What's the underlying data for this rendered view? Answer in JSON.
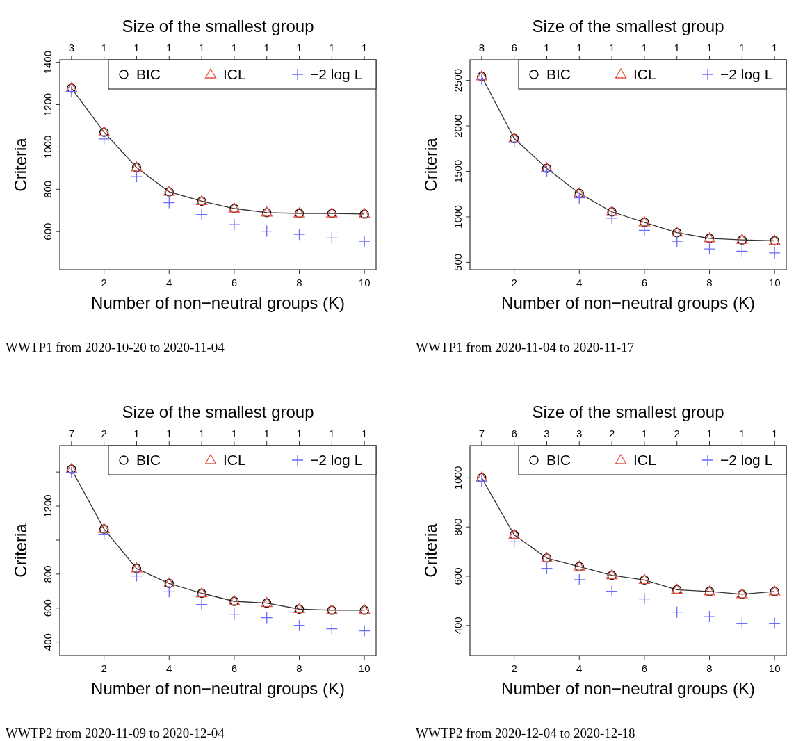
{
  "chart_data": [
    {
      "type": "line",
      "x2label": "Size of the smallest group",
      "xlabel": "Number of non−neutral groups (K)",
      "ylabel": "Criteria",
      "x": [
        1,
        2,
        3,
        4,
        5,
        6,
        7,
        8,
        9,
        10
      ],
      "xlim": [
        0.64,
        10.36
      ],
      "xticks": [
        2,
        4,
        6,
        8,
        10
      ],
      "ylim": [
        420,
        1412
      ],
      "yticks": [
        600,
        800,
        1000,
        1200,
        1400
      ],
      "legend": "top right",
      "annotations": [
        "WWTP1 from 2020-10-20 to 2020-11-04",
        {
          "text": "3",
          "x": 1
        },
        {
          "text": "1",
          "x": 2
        },
        {
          "text": "1",
          "x": 3
        },
        {
          "text": "1",
          "x": 4
        },
        {
          "text": "1",
          "x": 5
        },
        {
          "text": "1",
          "x": 6
        },
        {
          "text": "1",
          "x": 7
        },
        {
          "text": "1",
          "x": 8
        },
        {
          "text": "1",
          "x": 9
        },
        {
          "text": "1",
          "x": 10
        }
      ],
      "series": [
        {
          "name": "BIC",
          "type": "line",
          "marker": "circle",
          "color": "#000000",
          "values": [
            1278,
            1070,
            903,
            788,
            744,
            709,
            690,
            686,
            686,
            683
          ]
        },
        {
          "name": "ICL",
          "type": "scatter",
          "marker": "triangle",
          "color": "#df5347",
          "values": [
            1278,
            1070,
            903,
            788,
            744,
            709,
            690,
            686,
            686,
            683
          ]
        },
        {
          "name": "−2 log L",
          "type": "scatter",
          "marker": "cross",
          "color": "#6b6bff",
          "values": [
            1262,
            1038,
            860,
            737,
            681,
            633,
            602,
            587,
            570,
            554
          ]
        }
      ]
    },
    {
      "type": "line",
      "x2label": "Size of the smallest group",
      "xlabel": "Number of non−neutral groups (K)",
      "ylabel": "Criteria",
      "x": [
        1,
        2,
        3,
        4,
        5,
        6,
        7,
        8,
        9,
        10
      ],
      "xlim": [
        0.64,
        10.36
      ],
      "xticks": [
        2,
        4,
        6,
        8,
        10
      ],
      "ylim": [
        419,
        2726
      ],
      "yticks": [
        500,
        1000,
        1500,
        2000,
        2500
      ],
      "legend": "top right",
      "annotations": [
        "WWTP1 from 2020-11-04 to 2020-11-17",
        {
          "text": "8",
          "x": 1
        },
        {
          "text": "6",
          "x": 2
        },
        {
          "text": "1",
          "x": 3
        },
        {
          "text": "1",
          "x": 4
        },
        {
          "text": "1",
          "x": 5
        },
        {
          "text": "1",
          "x": 6
        },
        {
          "text": "1",
          "x": 7
        },
        {
          "text": "1",
          "x": 8
        },
        {
          "text": "1",
          "x": 9
        },
        {
          "text": "1",
          "x": 10
        }
      ],
      "series": [
        {
          "name": "BIC",
          "type": "line",
          "marker": "circle",
          "color": "#000000",
          "values": [
            2543,
            1861,
            1533,
            1258,
            1055,
            940,
            826,
            763,
            746,
            736
          ]
        },
        {
          "name": "ICL",
          "type": "scatter",
          "marker": "triangle",
          "color": "#df5347",
          "values": [
            2543,
            1861,
            1533,
            1258,
            1055,
            940,
            826,
            763,
            746,
            736
          ]
        },
        {
          "name": "−2 log L",
          "type": "scatter",
          "marker": "cross",
          "color": "#6b6bff",
          "values": [
            2513,
            1818,
            1500,
            1208,
            986,
            851,
            731,
            647,
            622,
            604
          ]
        }
      ]
    },
    {
      "type": "line",
      "x2label": "Size of the smallest group",
      "xlabel": "Number of non−neutral groups (K)",
      "ylabel": "Criteria",
      "x": [
        1,
        2,
        3,
        4,
        5,
        6,
        7,
        8,
        9,
        10
      ],
      "xlim": [
        0.64,
        10.36
      ],
      "xticks": [
        2,
        4,
        6,
        8,
        10
      ],
      "ylim": [
        321,
        1556
      ],
      "yticks": [
        400,
        600,
        800,
        {
          "value": 1000,
          "label": null
        },
        1200,
        {
          "value": 1400,
          "label": null
        }
      ],
      "legend": "top right",
      "annotations": [
        "WWTP2 from 2020-11-09 to 2020-12-04",
        {
          "text": "7",
          "x": 1
        },
        {
          "text": "2",
          "x": 2
        },
        {
          "text": "1",
          "x": 3
        },
        {
          "text": "1",
          "x": 4
        },
        {
          "text": "1",
          "x": 5
        },
        {
          "text": "1",
          "x": 6
        },
        {
          "text": "1",
          "x": 7
        },
        {
          "text": "1",
          "x": 8
        },
        {
          "text": "1",
          "x": 9
        },
        {
          "text": "1",
          "x": 10
        }
      ],
      "series": [
        {
          "name": "BIC",
          "type": "line",
          "marker": "circle",
          "color": "#000000",
          "values": [
            1417,
            1065,
            833,
            745,
            687,
            640,
            629,
            594,
            587,
            587
          ]
        },
        {
          "name": "ICL",
          "type": "scatter",
          "marker": "triangle",
          "color": "#df5347",
          "values": [
            1417,
            1065,
            833,
            745,
            687,
            640,
            629,
            594,
            587,
            587
          ]
        },
        {
          "name": "−2 log L",
          "type": "scatter",
          "marker": "cross",
          "color": "#6b6bff",
          "values": [
            1397,
            1035,
            789,
            696,
            621,
            564,
            543,
            498,
            478,
            466
          ]
        }
      ]
    },
    {
      "type": "line",
      "x2label": "Size of the smallest group",
      "xlabel": "Number of non−neutral groups (K)",
      "ylabel": "Criteria",
      "x": [
        1,
        2,
        3,
        4,
        5,
        6,
        7,
        8,
        9,
        10
      ],
      "xlim": [
        0.64,
        10.36
      ],
      "xticks": [
        2,
        4,
        6,
        8,
        10
      ],
      "ylim": [
        278,
        1131
      ],
      "yticks": [
        400,
        600,
        800,
        1000
      ],
      "legend": "top right",
      "annotations": [
        "WWTP2 from 2020-12-04 to 2020-12-18",
        {
          "text": "7",
          "x": 1
        },
        {
          "text": "6",
          "x": 2
        },
        {
          "text": "3",
          "x": 3
        },
        {
          "text": "3",
          "x": 4
        },
        {
          "text": "2",
          "x": 5
        },
        {
          "text": "1",
          "x": 6
        },
        {
          "text": "2",
          "x": 7
        },
        {
          "text": "1",
          "x": 8
        },
        {
          "text": "1",
          "x": 9
        },
        {
          "text": "1",
          "x": 10
        }
      ],
      "series": [
        {
          "name": "BIC",
          "type": "line",
          "marker": "circle",
          "color": "#000000",
          "values": [
            1000,
            768,
            674,
            639,
            604,
            585,
            545,
            538,
            527,
            538
          ]
        },
        {
          "name": "ICL",
          "type": "scatter",
          "marker": "triangle",
          "color": "#df5347",
          "values": [
            1000,
            768,
            674,
            639,
            604,
            585,
            545,
            538,
            527,
            538
          ]
        },
        {
          "name": "−2 log L",
          "type": "scatter",
          "marker": "cross",
          "color": "#6b6bff",
          "values": [
            986,
            740,
            632,
            586,
            539,
            508,
            454,
            436,
            409,
            409
          ]
        }
      ]
    }
  ]
}
